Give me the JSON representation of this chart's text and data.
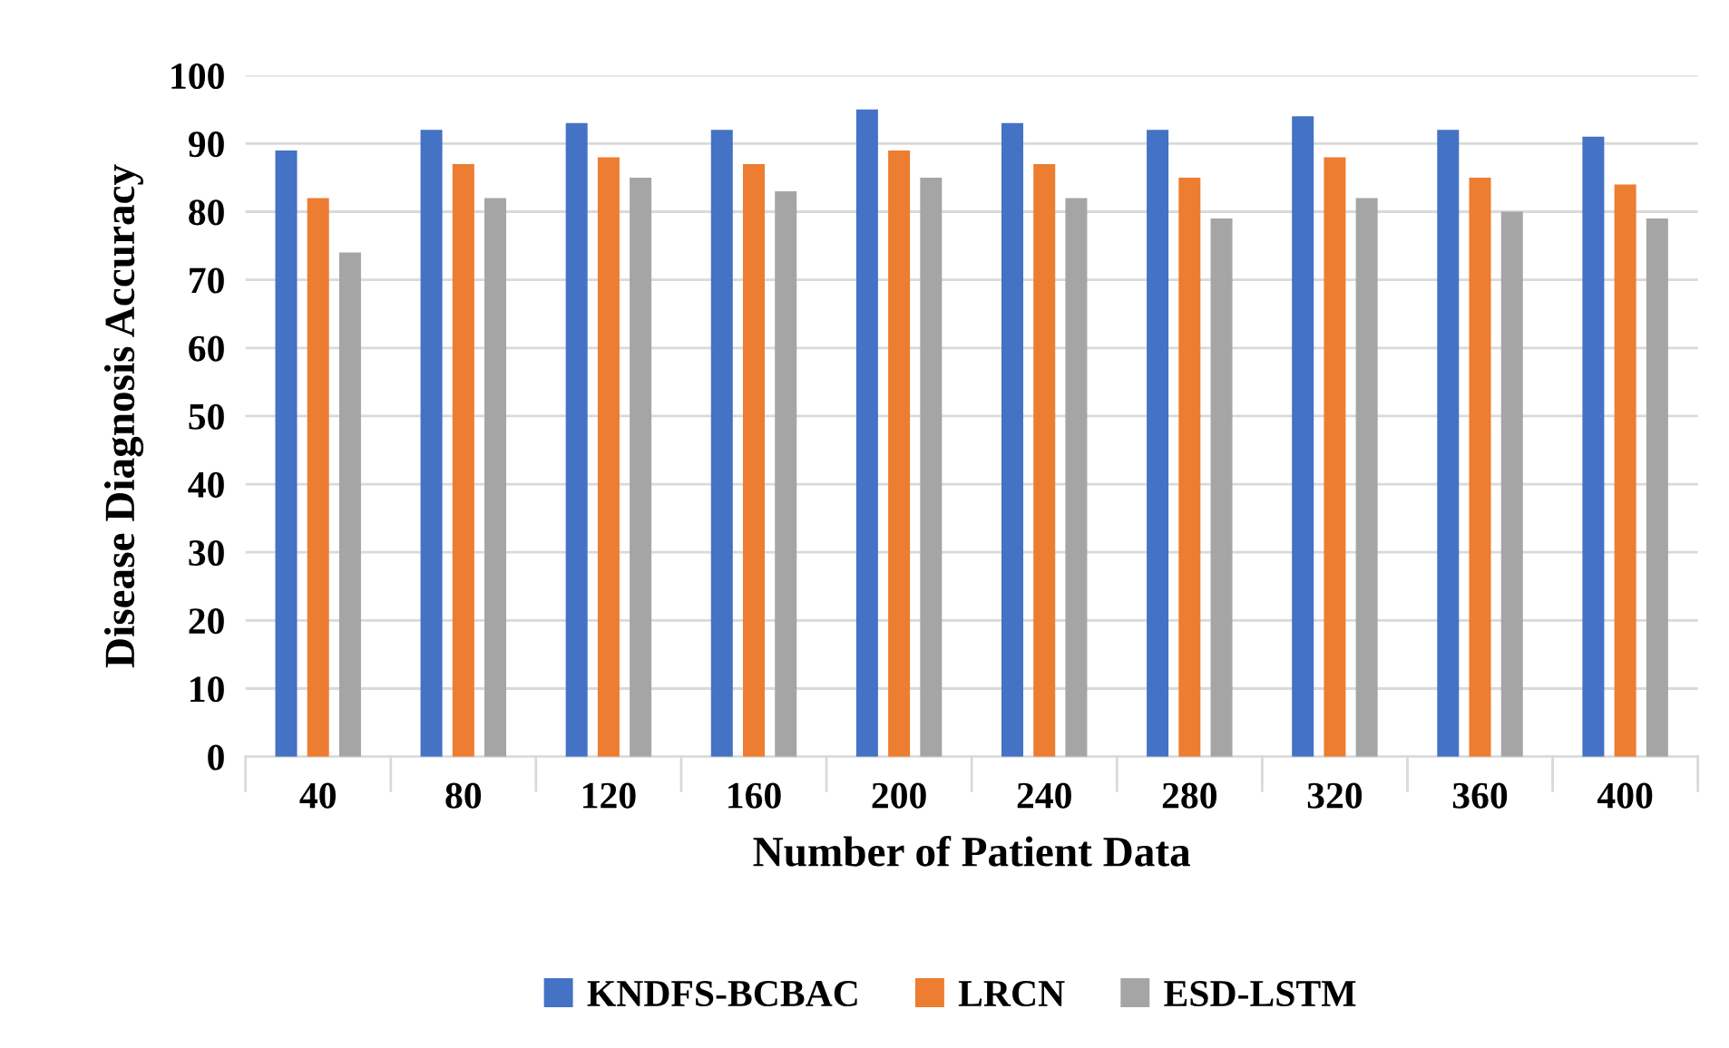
{
  "chart_data": {
    "type": "bar",
    "xlabel": "Number of Patient Data",
    "ylabel": "Disease Diagnosis Accuracy",
    "categories": [
      "40",
      "80",
      "120",
      "160",
      "200",
      "240",
      "280",
      "320",
      "360",
      "400"
    ],
    "series": [
      {
        "name": "KNDFS-BCBAC",
        "color": "#4472c4",
        "values": [
          89,
          92,
          93,
          92,
          95,
          93,
          92,
          94,
          92,
          91
        ]
      },
      {
        "name": "LRCN",
        "color": "#ed7d31",
        "values": [
          82,
          87,
          88,
          87,
          89,
          87,
          85,
          88,
          85,
          84
        ]
      },
      {
        "name": "ESD-LSTM",
        "color": "#a5a5a5",
        "values": [
          74,
          82,
          85,
          83,
          85,
          82,
          79,
          82,
          80,
          79
        ]
      }
    ],
    "ylim": [
      0,
      100
    ],
    "yticks": [
      0,
      10,
      20,
      30,
      40,
      50,
      60,
      70,
      80,
      90,
      100
    ],
    "grid": "y",
    "legend": "bottom"
  }
}
